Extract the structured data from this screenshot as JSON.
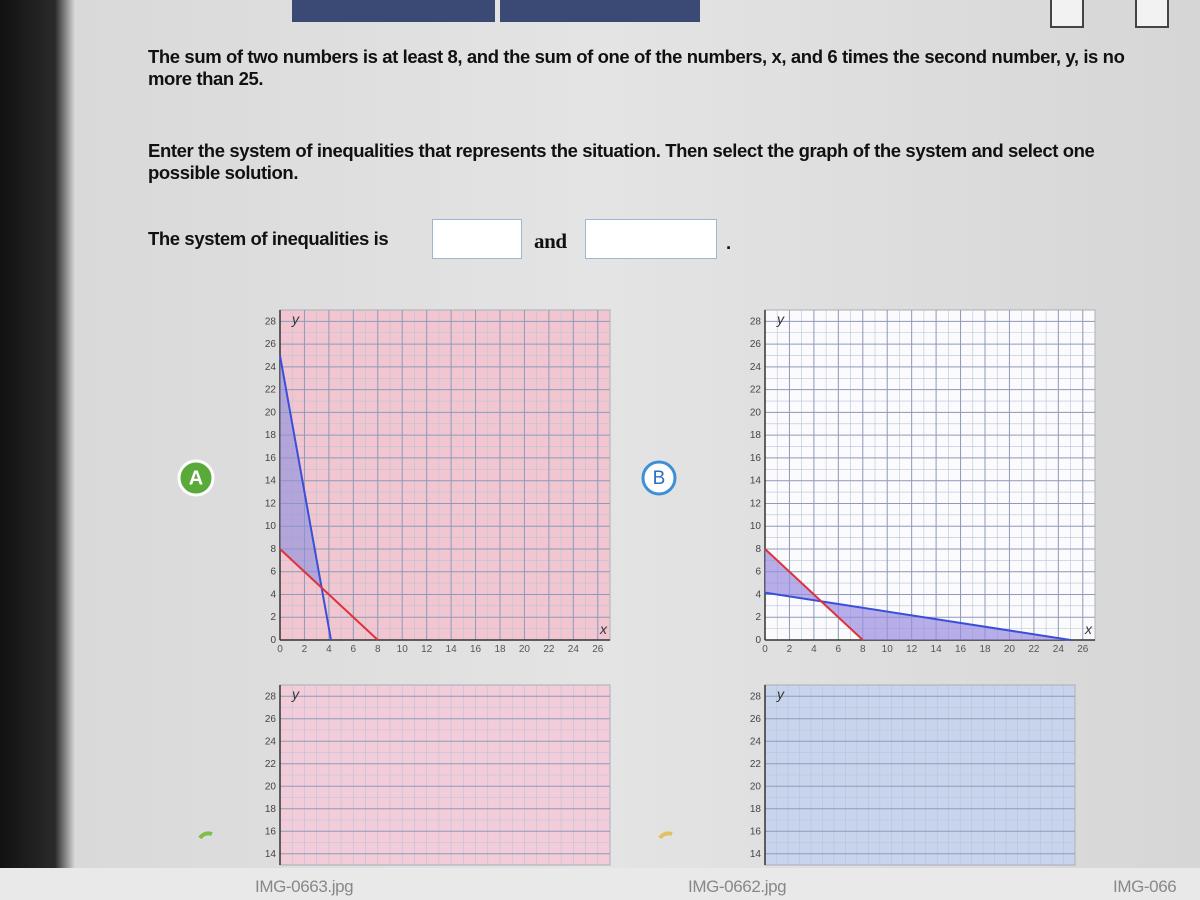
{
  "question": "The sum of two numbers is at least 8, and the sum of one of the numbers, x, and 6 times the second number, y, is no more than 25.",
  "instruction": "Enter the system of inequalities that represents the situation. Then select the graph of the system and select one possible solution.",
  "answer_row": {
    "label": "The system of inequalities is",
    "joiner": "and",
    "end": "."
  },
  "graphs": [
    {
      "option": "A",
      "x_label": "x",
      "y_label": "y",
      "xlim": [
        0,
        27
      ],
      "ylim": [
        0,
        29
      ],
      "xticks": [
        0,
        2,
        4,
        6,
        8,
        10,
        12,
        14,
        16,
        18,
        20,
        22,
        24,
        26
      ],
      "yticks": [
        0,
        2,
        4,
        6,
        8,
        10,
        12,
        14,
        16,
        18,
        20,
        22,
        24,
        26,
        28
      ]
    },
    {
      "option": "B",
      "x_label": "x",
      "y_label": "y",
      "xlim": [
        0,
        27
      ],
      "ylim": [
        0,
        29
      ],
      "xticks": [
        0,
        2,
        4,
        6,
        8,
        10,
        12,
        14,
        16,
        18,
        20,
        22,
        24,
        26
      ],
      "yticks": [
        0,
        2,
        4,
        6,
        8,
        10,
        12,
        14,
        16,
        18,
        20,
        22,
        24,
        26,
        28
      ]
    },
    {
      "y_label": "y",
      "xlim": [
        0,
        27
      ],
      "ylim": [
        13,
        29
      ],
      "yticks": [
        14,
        16,
        18,
        20,
        22,
        24,
        26,
        28
      ]
    },
    {
      "y_label": "y",
      "xlim": [
        0,
        27
      ],
      "ylim": [
        13,
        29
      ],
      "yticks": [
        14,
        16,
        18,
        20,
        22,
        24,
        26,
        28
      ]
    }
  ],
  "taskbar": [
    "IMG-0663.jpg",
    "IMG-0662.jpg",
    "IMG-066"
  ]
}
